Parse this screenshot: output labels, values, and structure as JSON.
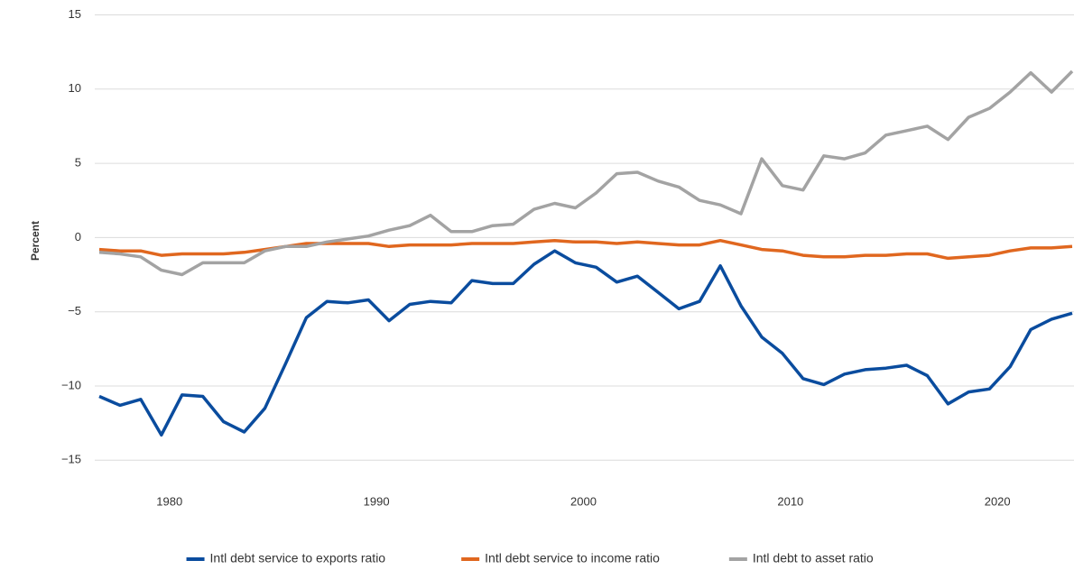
{
  "chart_data": {
    "type": "line",
    "y_label": "Percent",
    "x": [
      1976,
      1977,
      1978,
      1979,
      1980,
      1981,
      1982,
      1983,
      1984,
      1985,
      1986,
      1987,
      1988,
      1989,
      1990,
      1991,
      1992,
      1993,
      1994,
      1995,
      1996,
      1997,
      1998,
      1999,
      2000,
      2001,
      2002,
      2003,
      2004,
      2005,
      2006,
      2007,
      2008,
      2009,
      2010,
      2011,
      2012,
      2013,
      2014,
      2015,
      2016,
      2017,
      2018,
      2019,
      2020,
      2021,
      2022,
      2023
    ],
    "series": [
      {
        "name": "Intl debt service to exports ratio",
        "color": "#0a4c9e",
        "values": [
          -10.7,
          -11.3,
          -10.9,
          -13.3,
          -10.6,
          -10.7,
          -12.4,
          -13.1,
          -11.5,
          -8.5,
          -5.4,
          -4.3,
          -4.4,
          -4.2,
          -5.6,
          -4.5,
          -4.3,
          -4.4,
          -2.9,
          -3.1,
          -3.1,
          -1.8,
          -0.9,
          -1.7,
          -2.0,
          -3.0,
          -2.6,
          -3.7,
          -4.8,
          -4.3,
          -1.9,
          -4.6,
          -6.7,
          -7.8,
          -9.5,
          -9.9,
          -9.2,
          -8.9,
          -8.8,
          -8.6,
          -9.3,
          -11.2,
          -10.4,
          -10.2,
          -8.7,
          -6.2,
          -5.5,
          -5.1
        ]
      },
      {
        "name": "Intl debt service to income ratio",
        "color": "#e0671f",
        "values": [
          -0.8,
          -0.9,
          -0.9,
          -1.2,
          -1.1,
          -1.1,
          -1.1,
          -1.0,
          -0.8,
          -0.6,
          -0.4,
          -0.4,
          -0.4,
          -0.4,
          -0.6,
          -0.5,
          -0.5,
          -0.5,
          -0.4,
          -0.4,
          -0.4,
          -0.3,
          -0.2,
          -0.3,
          -0.3,
          -0.4,
          -0.3,
          -0.4,
          -0.5,
          -0.5,
          -0.2,
          -0.5,
          -0.8,
          -0.9,
          -1.2,
          -1.3,
          -1.3,
          -1.2,
          -1.2,
          -1.1,
          -1.1,
          -1.4,
          -1.3,
          -1.2,
          -0.9,
          -0.7,
          -0.7,
          -0.6
        ]
      },
      {
        "name": "Intl debt to asset ratio",
        "color": "#a3a3a3",
        "values": [
          -1.0,
          -1.1,
          -1.3,
          -2.2,
          -2.5,
          -1.7,
          -1.7,
          -1.7,
          -0.9,
          -0.6,
          -0.6,
          -0.3,
          -0.1,
          0.1,
          0.5,
          0.8,
          1.5,
          0.4,
          0.4,
          0.8,
          0.9,
          1.9,
          2.3,
          2.0,
          3.0,
          4.3,
          4.4,
          3.8,
          3.4,
          2.5,
          2.2,
          1.6,
          5.3,
          3.5,
          3.2,
          5.5,
          5.3,
          5.7,
          6.9,
          7.2,
          7.5,
          6.6,
          8.1,
          8.7,
          9.8,
          11.1,
          9.8,
          11.2
        ]
      }
    ],
    "xlim": [
      1976,
      2023
    ],
    "xticks": [
      1980,
      1990,
      2000,
      2010,
      2020
    ],
    "ylim": [
      -16.5,
      16
    ],
    "yticks": [
      {
        "value": -15,
        "label": "−15"
      },
      {
        "value": -10,
        "label": "−10"
      },
      {
        "value": -5,
        "label": "−5"
      },
      0,
      5,
      10,
      15
    ],
    "grid": true,
    "legend": "bottom"
  }
}
